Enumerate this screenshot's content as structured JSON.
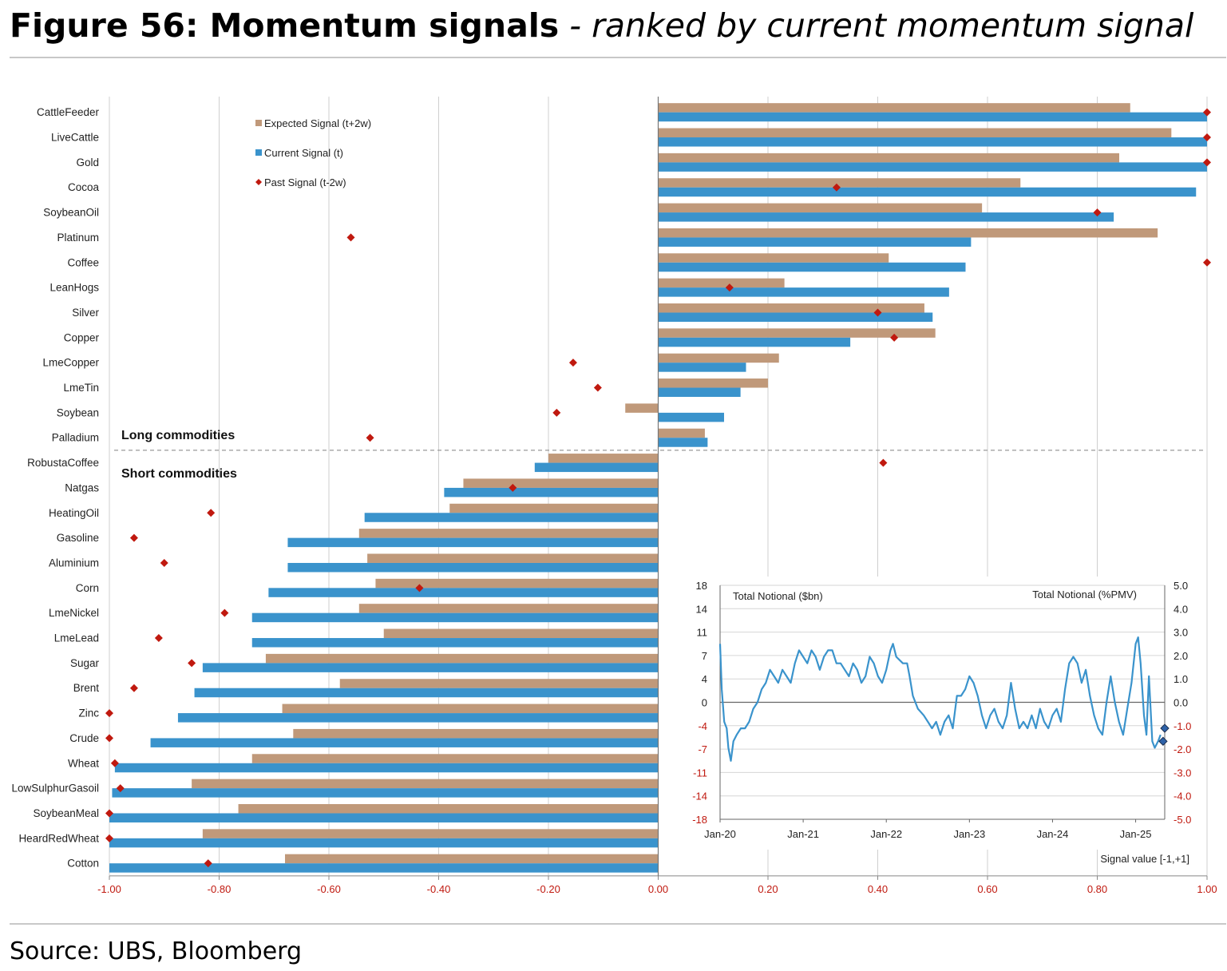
{
  "figure": {
    "title_bold": "Figure 56: Momentum signals",
    "title_rest": " - ranked by current momentum signal",
    "source": "Source: UBS, Bloomberg"
  },
  "colors": {
    "expected": "#c0997a",
    "current": "#3a93cc",
    "past": "#c0190f",
    "axis_tick": "#c0190f",
    "grid": "#cfcfcf",
    "inset_line": "#3a93cc"
  },
  "chart_data": [
    {
      "type": "bar",
      "orientation": "horizontal",
      "categories": [
        "CattleFeeder",
        "LiveCattle",
        "Gold",
        "Cocoa",
        "SoybeanOil",
        "Platinum",
        "Coffee",
        "LeanHogs",
        "Silver",
        "Copper",
        "LmeCopper",
        "LmeTin",
        "Soybean",
        "Palladium",
        "RobustaCoffee",
        "Natgas",
        "HeatingOil",
        "Gasoline",
        "Aluminium",
        "Corn",
        "LmeNickel",
        "LmeLead",
        "Sugar",
        "Brent",
        "Zinc",
        "Crude",
        "Wheat",
        "LowSulphurGasoil",
        "SoybeanMeal",
        "HeardRedWheat",
        "Cotton"
      ],
      "series": [
        {
          "name": "Expected Signal (t+2w)",
          "marker": "bar",
          "values": [
            0.86,
            0.935,
            0.84,
            0.66,
            0.59,
            0.91,
            0.42,
            0.23,
            0.485,
            0.505,
            0.22,
            0.2,
            -0.06,
            0.085,
            -0.2,
            -0.355,
            -0.38,
            -0.545,
            -0.53,
            -0.515,
            -0.545,
            -0.5,
            -0.715,
            -0.58,
            -0.685,
            -0.665,
            -0.74,
            -0.85,
            -0.765,
            -0.83,
            -0.68
          ]
        },
        {
          "name": "Current Signal (t)",
          "marker": "bar",
          "values": [
            1.0,
            1.0,
            1.0,
            0.98,
            0.83,
            0.57,
            0.56,
            0.53,
            0.5,
            0.35,
            0.16,
            0.15,
            0.12,
            0.09,
            -0.225,
            -0.39,
            -0.535,
            -0.675,
            -0.675,
            -0.71,
            -0.74,
            -0.74,
            -0.83,
            -0.845,
            -0.875,
            -0.925,
            -0.99,
            -0.995,
            -1.0,
            -1.0,
            -1.0
          ]
        },
        {
          "name": "Past Signal (t-2w)",
          "marker": "diamond",
          "values": [
            1.0,
            1.0,
            1.0,
            0.325,
            0.8,
            -0.56,
            1.0,
            0.13,
            0.4,
            0.43,
            -0.155,
            -0.11,
            -0.185,
            -0.525,
            0.41,
            -0.265,
            -0.815,
            -0.955,
            -0.9,
            -0.435,
            -0.79,
            -0.91,
            -0.85,
            -0.955,
            -1.0,
            -1.0,
            -0.99,
            -0.98,
            -1.0,
            -1.0,
            -0.82
          ]
        }
      ],
      "xlim": [
        -1.0,
        1.0
      ],
      "xticks": [
        "-1.00",
        "-0.80",
        "-0.60",
        "-0.40",
        "-0.20",
        "0.00",
        "0.20",
        "0.40",
        "0.60",
        "0.80",
        "1.00"
      ],
      "xlabel": "Signal value [-1,+1]",
      "group_labels": {
        "long": "Long commodities",
        "short": "Short commodities"
      },
      "divider_after_index": 13,
      "legend_position": "top-left",
      "grid": true
    },
    {
      "type": "line",
      "title_left": "Total Notional ($bn)",
      "title_right": "Total Notional (%PMV)",
      "x_ticks": [
        "Jan-20",
        "Jan-21",
        "Jan-22",
        "Jan-23",
        "Jan-24",
        "Jan-25"
      ],
      "x_range": [
        2020.0,
        2025.35
      ],
      "y_left_ticks": [
        "18",
        "14",
        "11",
        "7",
        "4",
        "0",
        "-4",
        "-7",
        "-11",
        "-14",
        "-18"
      ],
      "y_right_ticks": [
        "5.0",
        "4.0",
        "3.0",
        "2.0",
        "1.0",
        "0.0",
        "-1.0",
        "-2.0",
        "-3.0",
        "-4.0",
        "-5.0"
      ],
      "ylim_left": [
        -18,
        18
      ],
      "ylim_right": [
        -5.0,
        5.0
      ],
      "series": [
        {
          "values": [
            [
              2020.0,
              9
            ],
            [
              2020.02,
              2
            ],
            [
              2020.05,
              -3
            ],
            [
              2020.08,
              -4
            ],
            [
              2020.1,
              -7
            ],
            [
              2020.13,
              -9
            ],
            [
              2020.16,
              -6
            ],
            [
              2020.2,
              -5
            ],
            [
              2020.25,
              -4
            ],
            [
              2020.3,
              -4
            ],
            [
              2020.35,
              -3
            ],
            [
              2020.4,
              -1
            ],
            [
              2020.45,
              0
            ],
            [
              2020.5,
              2
            ],
            [
              2020.55,
              3
            ],
            [
              2020.6,
              5
            ],
            [
              2020.65,
              4
            ],
            [
              2020.7,
              3
            ],
            [
              2020.75,
              5
            ],
            [
              2020.8,
              4
            ],
            [
              2020.85,
              3
            ],
            [
              2020.9,
              6
            ],
            [
              2020.95,
              8
            ],
            [
              2021.0,
              7
            ],
            [
              2021.05,
              6
            ],
            [
              2021.1,
              8
            ],
            [
              2021.15,
              7
            ],
            [
              2021.2,
              5
            ],
            [
              2021.25,
              7
            ],
            [
              2021.3,
              8
            ],
            [
              2021.35,
              8
            ],
            [
              2021.4,
              6
            ],
            [
              2021.45,
              6
            ],
            [
              2021.5,
              5
            ],
            [
              2021.55,
              4
            ],
            [
              2021.6,
              6
            ],
            [
              2021.65,
              5
            ],
            [
              2021.7,
              3
            ],
            [
              2021.75,
              4
            ],
            [
              2021.8,
              7
            ],
            [
              2021.85,
              6
            ],
            [
              2021.9,
              4
            ],
            [
              2021.95,
              3
            ],
            [
              2022.0,
              5
            ],
            [
              2022.05,
              8
            ],
            [
              2022.08,
              9
            ],
            [
              2022.12,
              7
            ],
            [
              2022.2,
              6
            ],
            [
              2022.25,
              6
            ],
            [
              2022.28,
              4
            ],
            [
              2022.32,
              1
            ],
            [
              2022.38,
              -1
            ],
            [
              2022.45,
              -2
            ],
            [
              2022.5,
              -3
            ],
            [
              2022.55,
              -4
            ],
            [
              2022.6,
              -3
            ],
            [
              2022.65,
              -5
            ],
            [
              2022.7,
              -3
            ],
            [
              2022.75,
              -2
            ],
            [
              2022.8,
              -4
            ],
            [
              2022.85,
              1
            ],
            [
              2022.9,
              1
            ],
            [
              2022.95,
              2
            ],
            [
              2023.0,
              4
            ],
            [
              2023.05,
              3
            ],
            [
              2023.1,
              1
            ],
            [
              2023.15,
              -2
            ],
            [
              2023.2,
              -4
            ],
            [
              2023.25,
              -2
            ],
            [
              2023.3,
              -1
            ],
            [
              2023.35,
              -3
            ],
            [
              2023.4,
              -4
            ],
            [
              2023.45,
              -2
            ],
            [
              2023.5,
              3
            ],
            [
              2023.55,
              -1
            ],
            [
              2023.6,
              -4
            ],
            [
              2023.65,
              -3
            ],
            [
              2023.7,
              -4
            ],
            [
              2023.75,
              -2
            ],
            [
              2023.8,
              -4
            ],
            [
              2023.85,
              -1
            ],
            [
              2023.9,
              -3
            ],
            [
              2023.95,
              -4
            ],
            [
              2024.0,
              -2
            ],
            [
              2024.05,
              -1
            ],
            [
              2024.1,
              -3
            ],
            [
              2024.15,
              2
            ],
            [
              2024.2,
              6
            ],
            [
              2024.25,
              7
            ],
            [
              2024.3,
              6
            ],
            [
              2024.35,
              3
            ],
            [
              2024.4,
              5
            ],
            [
              2024.45,
              1
            ],
            [
              2024.5,
              -2
            ],
            [
              2024.55,
              -4
            ],
            [
              2024.6,
              -5
            ],
            [
              2024.65,
              0
            ],
            [
              2024.7,
              4
            ],
            [
              2024.75,
              0
            ],
            [
              2024.8,
              -3
            ],
            [
              2024.85,
              -5
            ],
            [
              2024.9,
              -1
            ],
            [
              2024.95,
              3
            ],
            [
              2025.0,
              9
            ],
            [
              2025.03,
              10
            ],
            [
              2025.06,
              6
            ],
            [
              2025.1,
              -2
            ],
            [
              2025.13,
              -5
            ],
            [
              2025.16,
              4
            ],
            [
              2025.2,
              -6
            ],
            [
              2025.23,
              -7
            ],
            [
              2025.27,
              -6
            ],
            [
              2025.3,
              -5
            ]
          ]
        }
      ],
      "markers": [
        [
          2025.35,
          -4
        ],
        [
          2025.33,
          -6
        ]
      ],
      "zero_line": true
    }
  ]
}
